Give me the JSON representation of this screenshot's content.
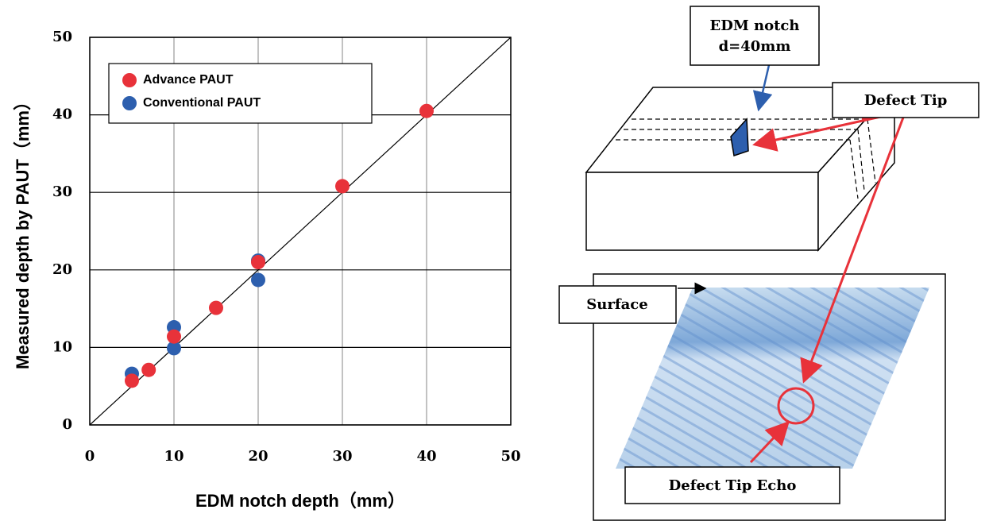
{
  "chart_data": {
    "type": "scatter",
    "x_label": "EDM notch depth（mm）",
    "y_label": "Measured depth by PAUT（mm）",
    "xlim": [
      0,
      50
    ],
    "xticks": [
      0,
      10,
      20,
      30,
      40,
      50
    ],
    "ylim": [
      0,
      50
    ],
    "yticks": [
      0,
      10,
      20,
      30,
      40,
      50
    ],
    "grid": true,
    "legend": "upper left",
    "series": [
      {
        "name": "Advance PAUT",
        "color": "#e8323a",
        "x": [
          5,
          7,
          10,
          15,
          20,
          30,
          40
        ],
        "values": [
          5.7,
          7.1,
          11.4,
          15.1,
          21,
          30.8,
          40.5
        ]
      },
      {
        "name": "Conventional PAUT",
        "color": "#2d5fae",
        "x": [
          5,
          10,
          10,
          20,
          20
        ],
        "values": [
          6.6,
          12.6,
          9.9,
          21.2,
          18.7
        ]
      }
    ]
  },
  "diagram": {
    "notch_label": [
      "EDM notch",
      "d=40mm"
    ],
    "tip_label": "Defect Tip",
    "surface_label": "Surface",
    "echo_label": "Defect Tip Echo"
  }
}
